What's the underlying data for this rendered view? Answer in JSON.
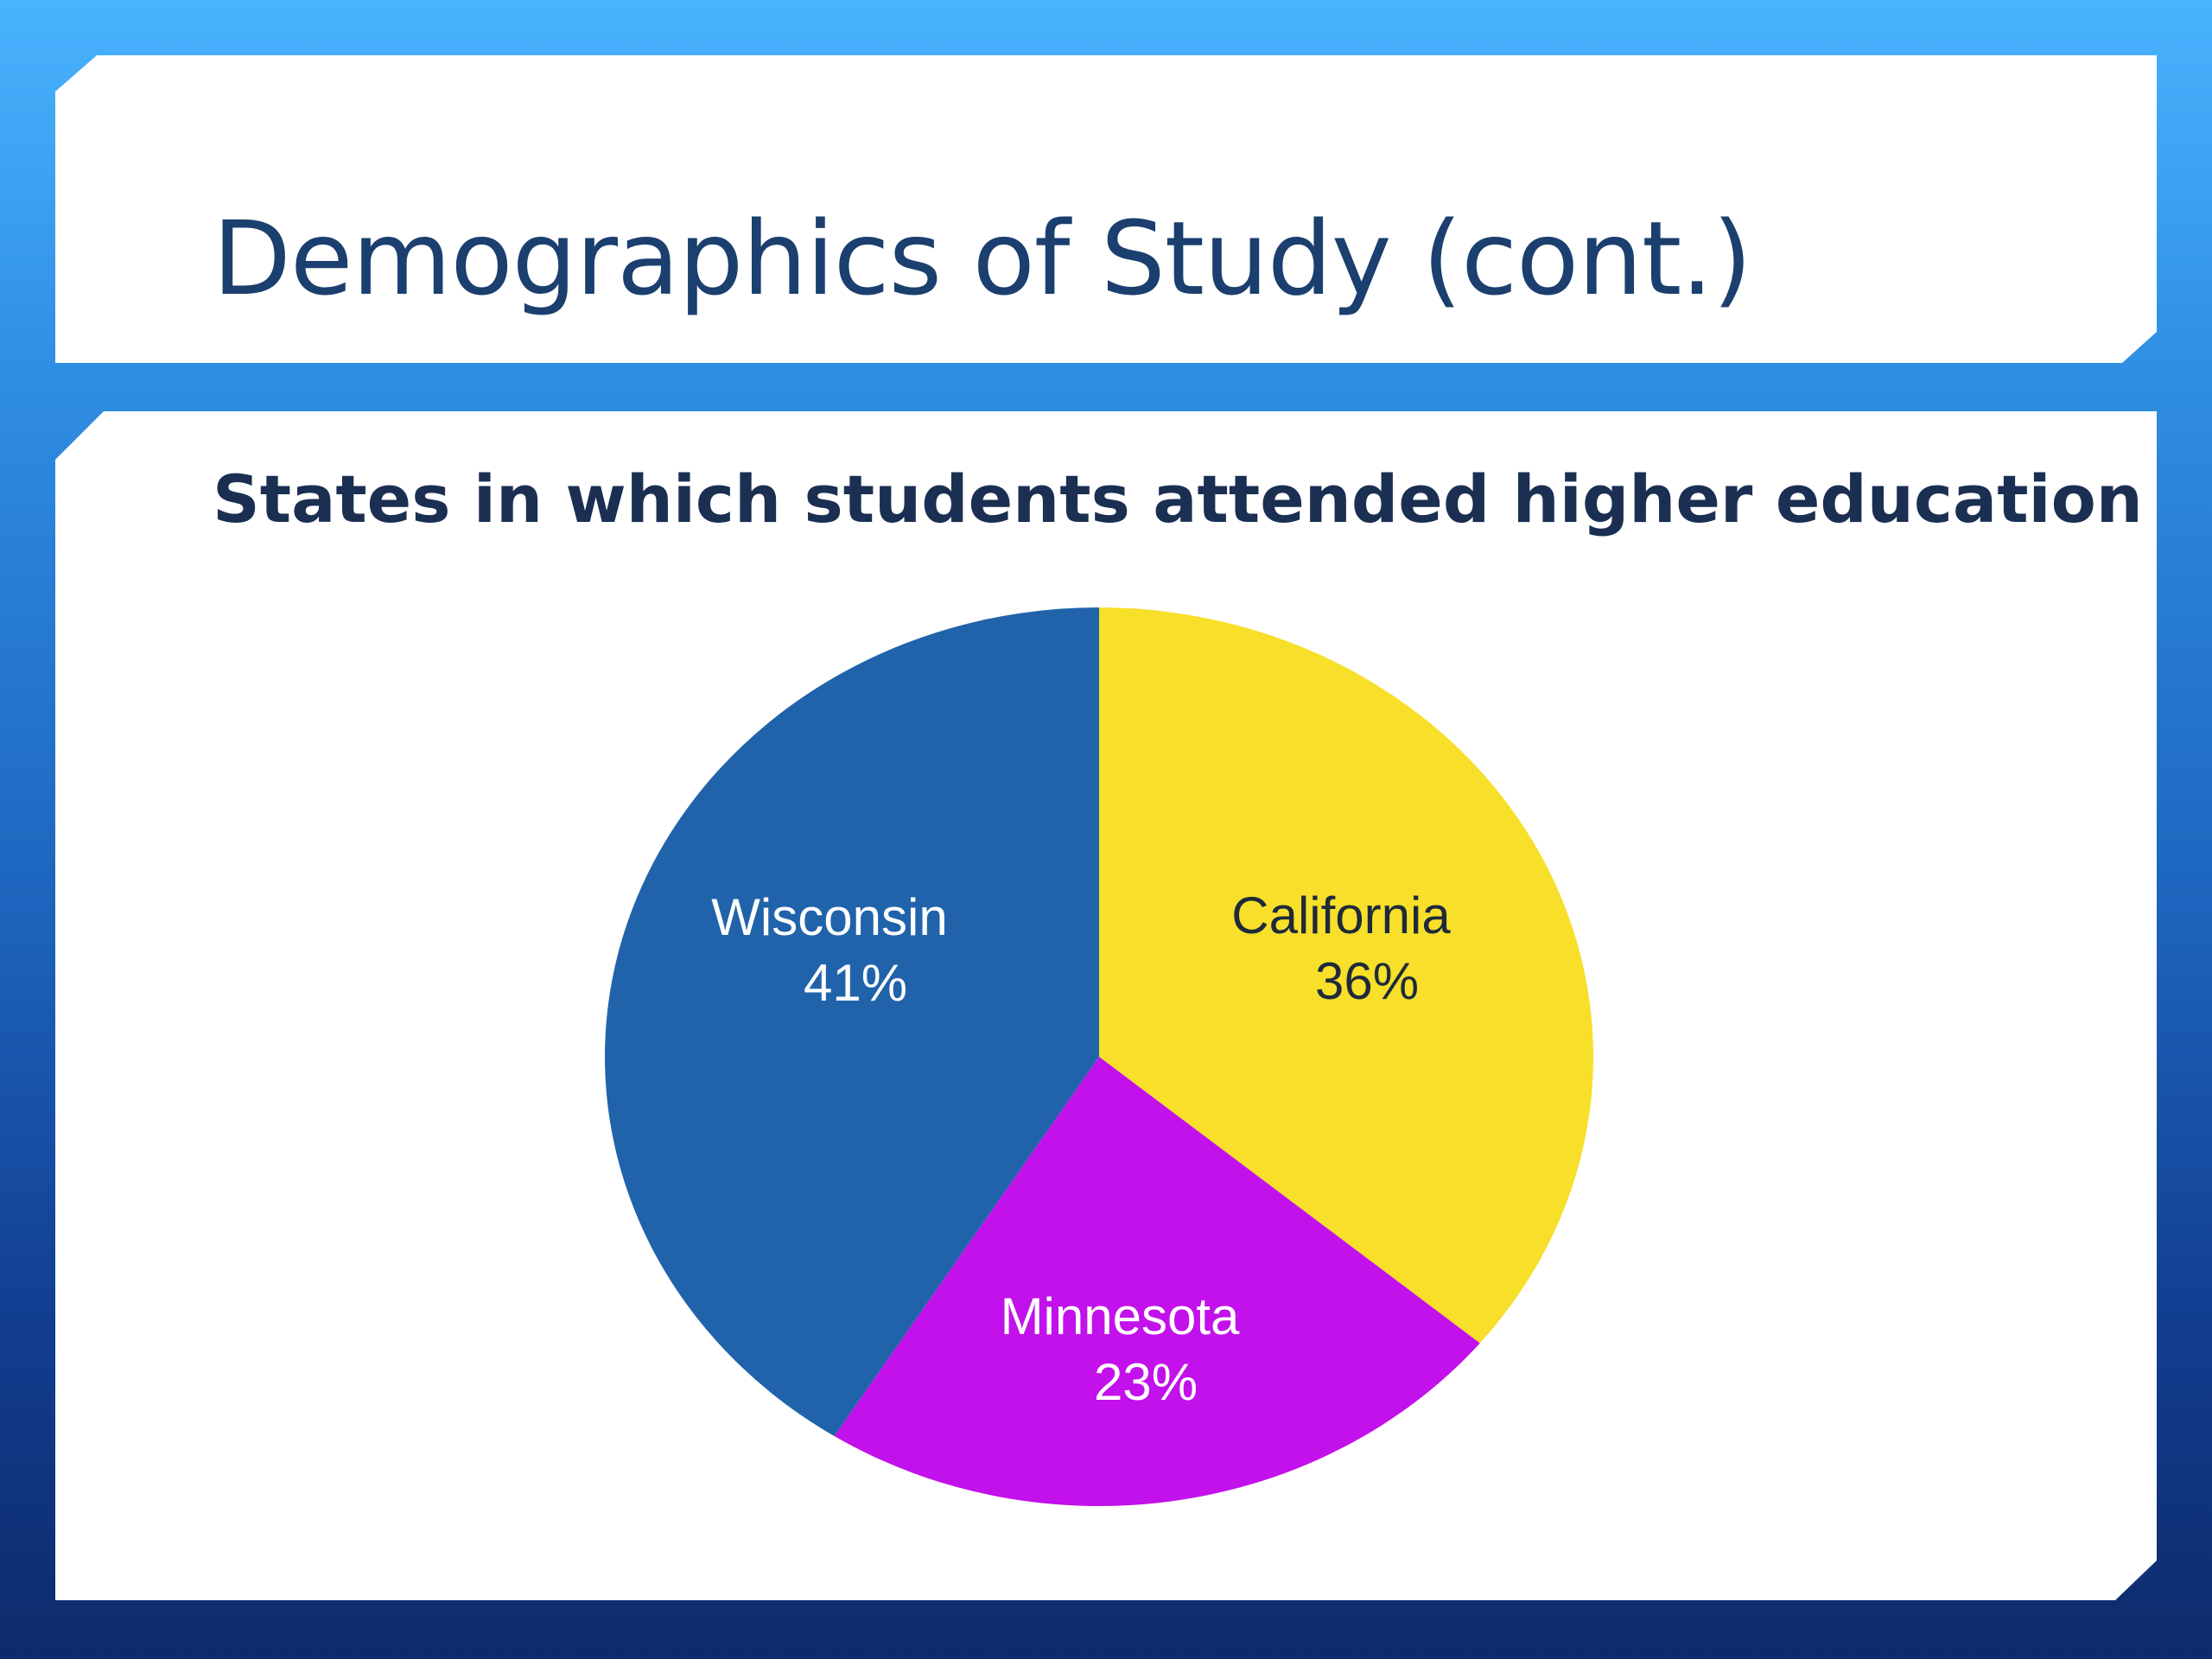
{
  "slide": {
    "title": "Demographics of Study (cont.)",
    "subtitle": "States in which students attended higher education"
  },
  "chart_data": {
    "type": "pie",
    "title": "",
    "categories": [
      "California",
      "Minnesota",
      "Wisconsin"
    ],
    "values": [
      36,
      23,
      41
    ],
    "labels": [
      "36%",
      "23%",
      "41%"
    ],
    "colors": [
      "#f7df2a",
      "#c211ea",
      "#2063ab"
    ],
    "label_colors": [
      "#1e2a3a",
      "#ffffff",
      "#ffffff"
    ],
    "start_angle": "12 o'clock",
    "direction": "clockwise",
    "legend": "none"
  }
}
